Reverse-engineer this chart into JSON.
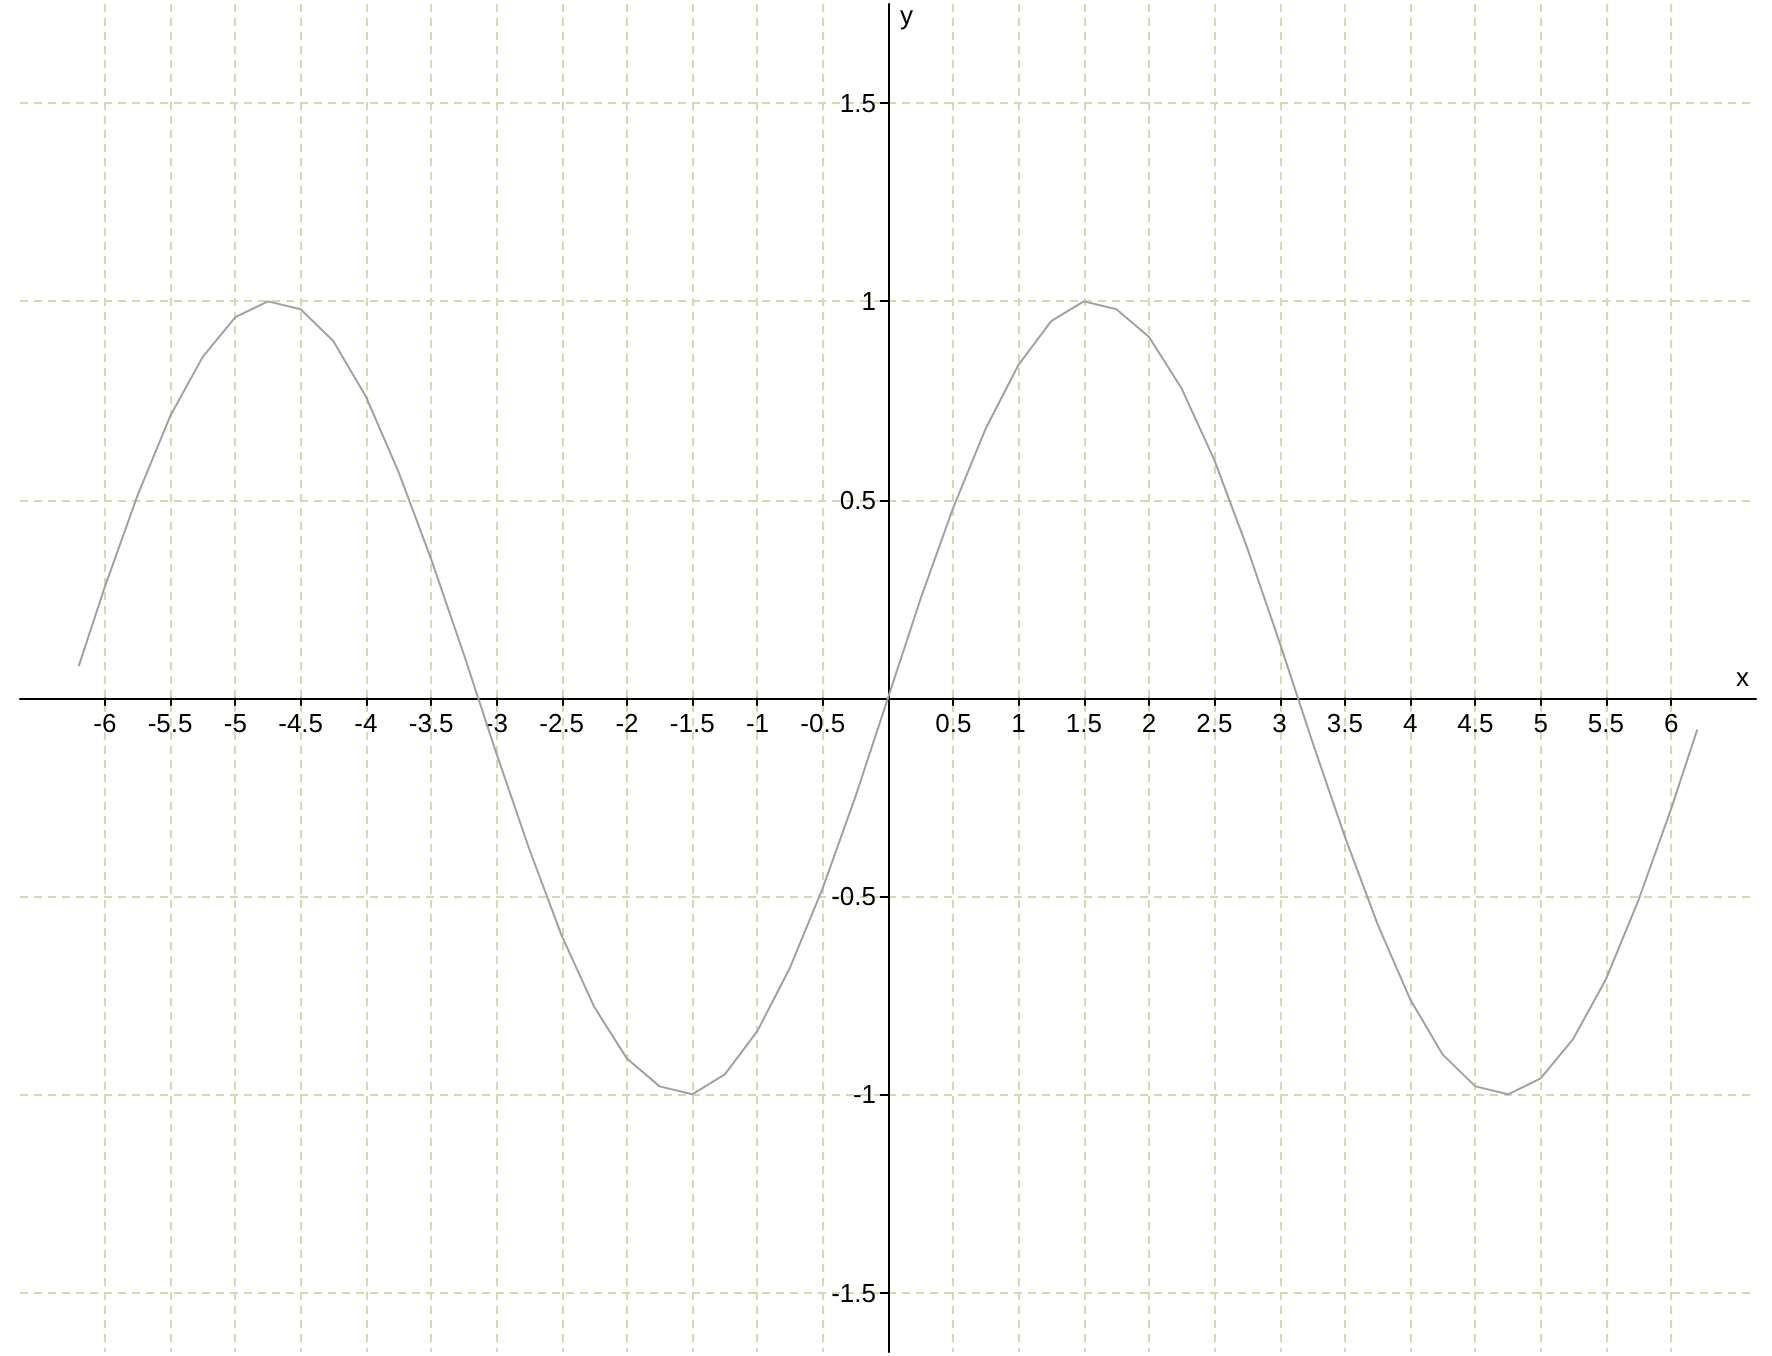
{
  "chart_data": {
    "type": "line",
    "xlabel": "x",
    "ylabel": "y",
    "x": [
      -6.2,
      -6,
      -5.75,
      -5.5,
      -5.25,
      -5,
      -4.75,
      -4.5,
      -4.25,
      -4,
      -3.75,
      -3.5,
      -3.25,
      -3,
      -2.75,
      -2.5,
      -2.25,
      -2,
      -1.75,
      -1.5,
      -1.25,
      -1,
      -0.75,
      -0.5,
      -0.25,
      0,
      0.25,
      0.5,
      0.75,
      1,
      1.25,
      1.5,
      1.75,
      2,
      2.25,
      2.5,
      2.75,
      3,
      3.25,
      3.5,
      3.75,
      4,
      4.25,
      4.5,
      4.75,
      5,
      5.25,
      5.5,
      5.75,
      6,
      6.2
    ],
    "series": [
      {
        "color": "#a0a0a0",
        "values": [
          0.08,
          0.28,
          0.51,
          0.71,
          0.86,
          0.96,
          1,
          0.98,
          0.9,
          0.76,
          0.57,
          0.35,
          0.11,
          -0.14,
          -0.38,
          -0.6,
          -0.78,
          -0.91,
          -0.98,
          -1,
          -0.95,
          -0.84,
          -0.68,
          -0.48,
          -0.25,
          0,
          0.25,
          0.48,
          0.68,
          0.84,
          0.95,
          1,
          0.98,
          0.91,
          0.78,
          0.6,
          0.38,
          0.14,
          -0.11,
          -0.35,
          -0.57,
          -0.76,
          -0.9,
          -0.98,
          -1,
          -0.96,
          -0.86,
          -0.71,
          -0.51,
          -0.28,
          -0.08
        ]
      }
    ],
    "xlim": [
      -6.65,
      6.65
    ],
    "ylim": [
      -1.65,
      1.75
    ],
    "xticks": [
      -6,
      -5.5,
      -5,
      -4.5,
      -4,
      -3.5,
      -3,
      -2.5,
      -2,
      -1.5,
      -1,
      -0.5,
      0.5,
      1,
      1.5,
      2,
      2.5,
      3,
      3.5,
      4,
      4.5,
      5,
      5.5,
      6
    ],
    "yticks": [
      -1.5,
      -1,
      -0.5,
      0.5,
      1,
      1.5
    ],
    "grid": true,
    "marker": "none",
    "line_style": "solid"
  }
}
